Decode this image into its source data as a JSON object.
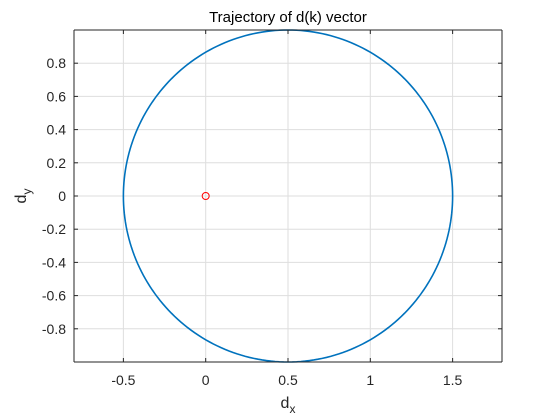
{
  "chart_data": {
    "type": "line",
    "title": "Trajectory of d(k) vector",
    "xlabel": {
      "main": "d",
      "sub": "x"
    },
    "ylabel": {
      "main": "d",
      "sub": "y"
    },
    "xlim": [
      -0.8,
      1.8
    ],
    "ylim": [
      -1.0,
      1.0
    ],
    "xticks": [
      -0.5,
      0,
      0.5,
      1,
      1.5
    ],
    "xtick_labels": [
      "-0.5",
      "0",
      "0.5",
      "1",
      "1.5"
    ],
    "yticks": [
      -0.8,
      -0.6,
      -0.4,
      -0.2,
      0,
      0.2,
      0.4,
      0.6,
      0.8
    ],
    "ytick_labels": [
      "-0.8",
      "-0.6",
      "-0.4",
      "-0.2",
      "0",
      "0.2",
      "0.4",
      "0.6",
      "0.8"
    ],
    "grid": true,
    "series": [
      {
        "type": "line",
        "shape": "circle",
        "center": [
          0.5,
          0
        ],
        "radius": 1.0,
        "color": "#0072BD"
      },
      {
        "type": "scatter",
        "marker": "circle-open",
        "points": [
          [
            0,
            0
          ]
        ],
        "color": "#FF0000"
      }
    ]
  },
  "colors": {
    "background": "#ffffff",
    "axes_face": "#ffffff",
    "axis_line": "#262626",
    "grid": "#dedede"
  }
}
